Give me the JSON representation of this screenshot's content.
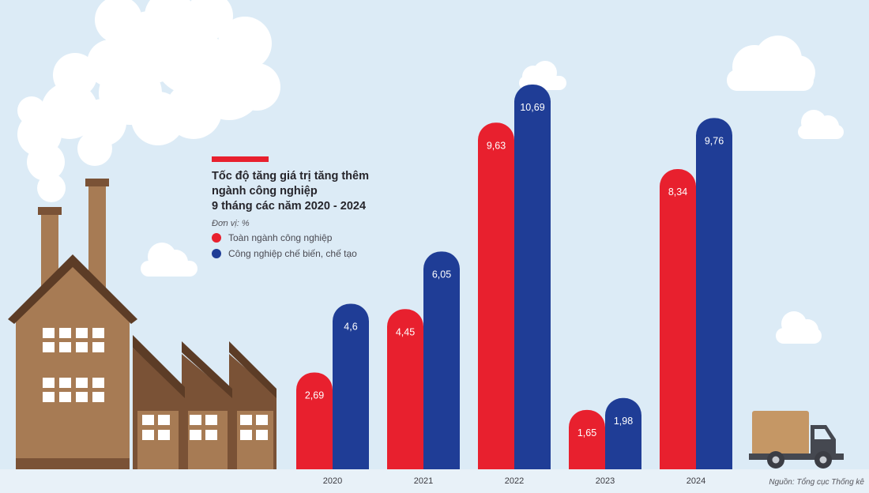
{
  "chart_data": {
    "type": "bar",
    "title": [
      "Tốc độ tăng giá trị tăng thêm",
      "ngành công nghiệp",
      "9 tháng các năm 2020 - 2024"
    ],
    "unit": "Đơn vị: %",
    "categories": [
      "2020",
      "2021",
      "2022",
      "2023",
      "2024"
    ],
    "series": [
      {
        "name": "Toàn ngành công nghiệp",
        "color": "#e8202e",
        "values": [
          2.69,
          4.45,
          9.63,
          1.65,
          8.34
        ]
      },
      {
        "name": "Công nghiệp chế biến, chế tạo",
        "color": "#1f3d96",
        "values": [
          4.6,
          6.05,
          10.69,
          1.98,
          9.76
        ]
      }
    ],
    "ylim": [
      0,
      11.5
    ],
    "decimal_separator": ",",
    "source": "Nguồn: Tổng cục Thống kê"
  },
  "colors": {
    "sky": "#dcebf6",
    "accent": "#e8202e",
    "factory_light": "#a77b54",
    "factory_dark": "#7a5236",
    "ground": "#e8f1f8"
  }
}
